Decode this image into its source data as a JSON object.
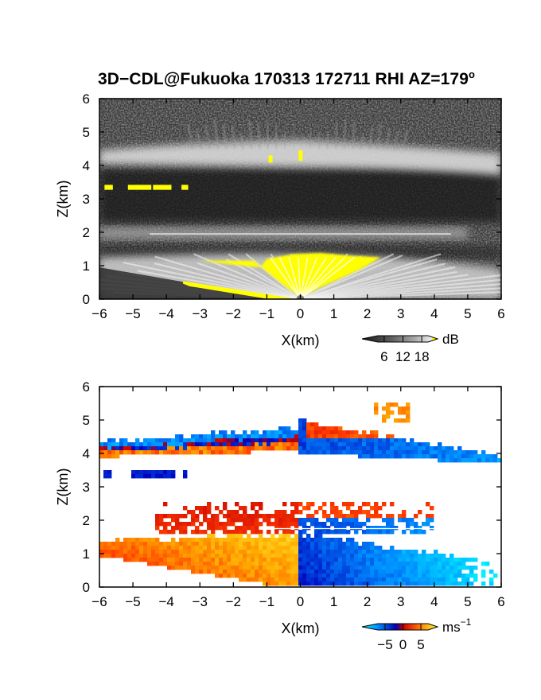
{
  "title": "3D−CDL@Fukuoka 170313 172711 RHI AZ=179",
  "title_degree": "o",
  "chart_data": [
    {
      "type": "heatmap",
      "panel": "top",
      "quantity": "backscatter intensity",
      "xlabel": "X(km)",
      "ylabel": "Z(km)",
      "xlim": [
        -6,
        6
      ],
      "ylim": [
        0,
        6
      ],
      "xticks": [
        "−6",
        "−5",
        "−4",
        "−3",
        "−2",
        "−1",
        "0",
        "1",
        "2",
        "3",
        "4",
        "5",
        "6"
      ],
      "yticks": [
        "0",
        "1",
        "2",
        "3",
        "4",
        "5",
        "6"
      ],
      "colorbar": {
        "unit": "dB",
        "ticks": [
          "6",
          "12",
          "18"
        ],
        "range": [
          4,
          20
        ],
        "colors": [
          "#202020",
          "#606060",
          "#a0a0a0",
          "#e0e0e0",
          "#ffff00"
        ]
      },
      "features": [
        {
          "name": "ground clutter near radar",
          "x": [
            -4,
            0
          ],
          "z": [
            0,
            0.35
          ],
          "level": "saturated (>18 dB)"
        },
        {
          "name": "strong boundary-layer echo",
          "x": [
            -1.2,
            2.4
          ],
          "z": [
            0,
            1.3
          ],
          "level": "saturated (>18 dB)"
        },
        {
          "name": "layer ~1.8–2.2 km",
          "x": [
            -6,
            5
          ],
          "z": [
            1.7,
            2.2
          ],
          "level": "moderate"
        },
        {
          "name": "cloud base layer",
          "x": [
            -6,
            6
          ],
          "z": [
            3.9,
            4.7
          ],
          "level": "strong"
        },
        {
          "name": "elevated echo",
          "x": [
            -5.8,
            -3.4
          ],
          "z": [
            3.25,
            3.45
          ],
          "level": "saturated (>18 dB)"
        }
      ]
    },
    {
      "type": "heatmap",
      "panel": "bottom",
      "quantity": "radial velocity",
      "xlabel": "X(km)",
      "ylabel": "Z(km)",
      "xlim": [
        -6,
        6
      ],
      "ylim": [
        0,
        6
      ],
      "xticks": [
        "−6",
        "−5",
        "−4",
        "−3",
        "−2",
        "−1",
        "0",
        "1",
        "2",
        "3",
        "4",
        "5",
        "6"
      ],
      "yticks": [
        "0",
        "1",
        "2",
        "3",
        "4",
        "5",
        "6"
      ],
      "colorbar": {
        "unit": "ms",
        "unit_exponent": "−1",
        "ticks": [
          "−5",
          "0",
          "5"
        ],
        "range": [
          -7,
          7
        ],
        "colors": [
          "#00ffff",
          "#0070ff",
          "#0000c0",
          "#ff0000",
          "#ff8000",
          "#ffff00"
        ]
      },
      "features": [
        {
          "name": "lower layer west",
          "x": [
            -6,
            0
          ],
          "z": [
            0,
            1.6
          ],
          "velocity": [
            2,
            5
          ]
        },
        {
          "name": "lower layer east",
          "x": [
            0,
            6
          ],
          "z": [
            0,
            1.6
          ],
          "velocity": [
            -6,
            -1
          ]
        },
        {
          "name": "middle layer",
          "x": [
            -4.3,
            4
          ],
          "z": [
            1.6,
            2.5
          ],
          "velocity": [
            -3,
            4
          ]
        },
        {
          "name": "elevated echo",
          "x": [
            -5.8,
            -3.4
          ],
          "z": [
            3.25,
            3.45
          ],
          "velocity": [
            -2,
            -1
          ]
        },
        {
          "name": "cloud layer west",
          "x": [
            -6,
            0
          ],
          "z": [
            3.8,
            4.7
          ],
          "velocity": [
            -4,
            2
          ]
        },
        {
          "name": "cloud layer east",
          "x": [
            0,
            6
          ],
          "z": [
            3.7,
            5.7
          ],
          "velocity": [
            -3,
            4
          ]
        }
      ]
    }
  ]
}
